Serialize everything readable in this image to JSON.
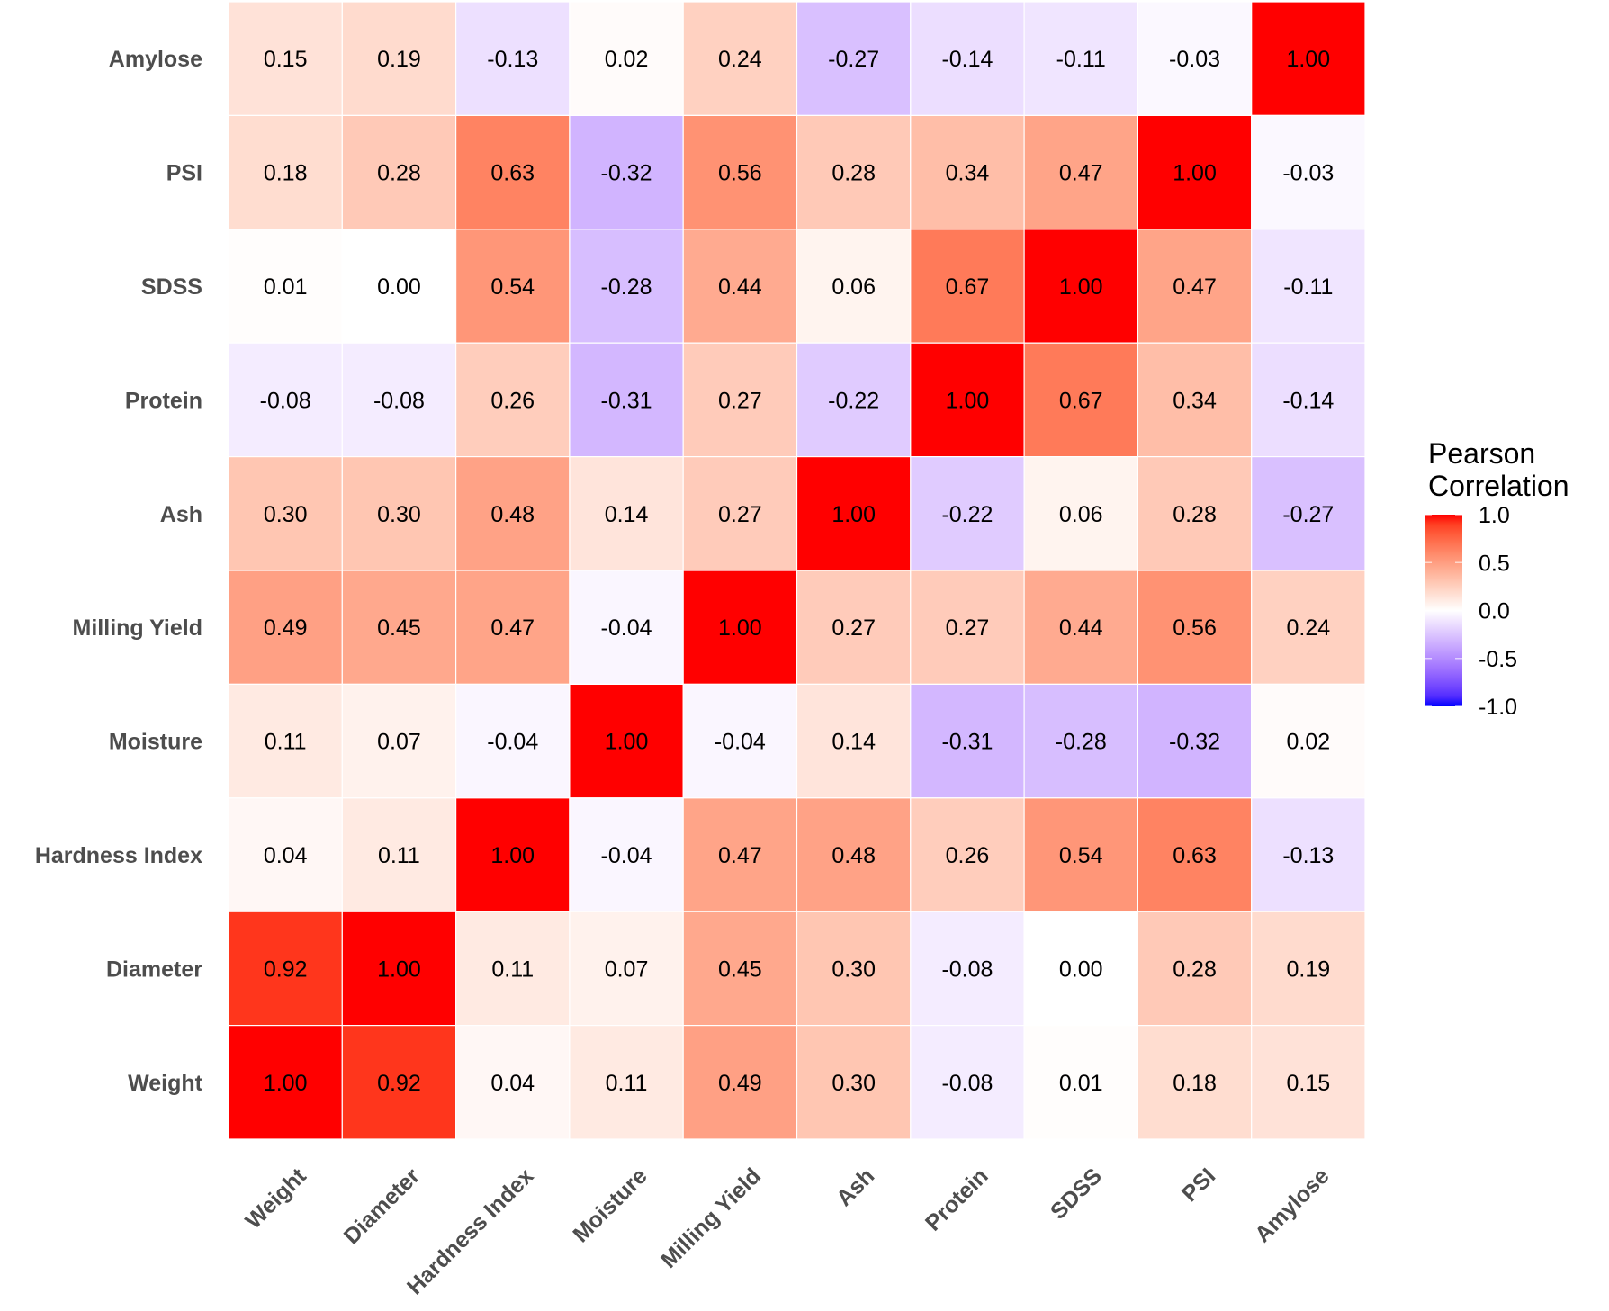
{
  "chart_data": {
    "type": "heatmap",
    "title": "",
    "xlabel": "",
    "ylabel": "",
    "x_categories": [
      "Weight",
      "Diameter",
      "Hardness Index",
      "Moisture",
      "Milling Yield",
      "Ash",
      "Protein",
      "SDSS",
      "PSI",
      "Amylose"
    ],
    "y_categories_top_to_bottom": [
      "Amylose",
      "PSI",
      "SDSS",
      "Protein",
      "Ash",
      "Milling Yield",
      "Moisture",
      "Hardness Index",
      "Diameter",
      "Weight"
    ],
    "matrix_top_to_bottom": [
      [
        0.15,
        0.19,
        -0.13,
        0.02,
        0.24,
        -0.27,
        -0.14,
        -0.11,
        -0.03,
        1.0
      ],
      [
        0.18,
        0.28,
        0.63,
        -0.32,
        0.56,
        0.28,
        0.34,
        0.47,
        1.0,
        -0.03
      ],
      [
        0.01,
        0.0,
        0.54,
        -0.28,
        0.44,
        0.06,
        0.67,
        1.0,
        0.47,
        -0.11
      ],
      [
        -0.08,
        -0.08,
        0.26,
        -0.31,
        0.27,
        -0.22,
        1.0,
        0.67,
        0.34,
        -0.14
      ],
      [
        0.3,
        0.3,
        0.48,
        0.14,
        0.27,
        1.0,
        -0.22,
        0.06,
        0.28,
        -0.27
      ],
      [
        0.49,
        0.45,
        0.47,
        -0.04,
        1.0,
        0.27,
        0.27,
        0.44,
        0.56,
        0.24
      ],
      [
        0.11,
        0.07,
        -0.04,
        1.0,
        -0.04,
        0.14,
        -0.31,
        -0.28,
        -0.32,
        0.02
      ],
      [
        0.04,
        0.11,
        1.0,
        -0.04,
        0.47,
        0.48,
        0.26,
        0.54,
        0.63,
        -0.13
      ],
      [
        0.92,
        1.0,
        0.11,
        0.07,
        0.45,
        0.3,
        -0.08,
        0.0,
        0.28,
        0.19
      ],
      [
        1.0,
        0.92,
        0.04,
        0.11,
        0.49,
        0.3,
        -0.08,
        0.01,
        0.18,
        0.15
      ]
    ],
    "value_format": "2 decimals",
    "color_scale": {
      "low": "#0000FF",
      "mid": "#FFFFFF",
      "high": "#FF0000",
      "range": [
        -1.0,
        1.0
      ],
      "midpoint": 0.0
    },
    "legend": {
      "title_lines": [
        "Pearson",
        "Correlation"
      ],
      "ticks": [
        1.0,
        0.5,
        0.0,
        -0.5,
        -1.0
      ],
      "tick_labels": [
        "1.0",
        "0.5",
        "0.0",
        "-0.5",
        "-1.0"
      ],
      "placement": "right"
    },
    "grid": false,
    "cell_border_color": "#FFFFFF"
  }
}
